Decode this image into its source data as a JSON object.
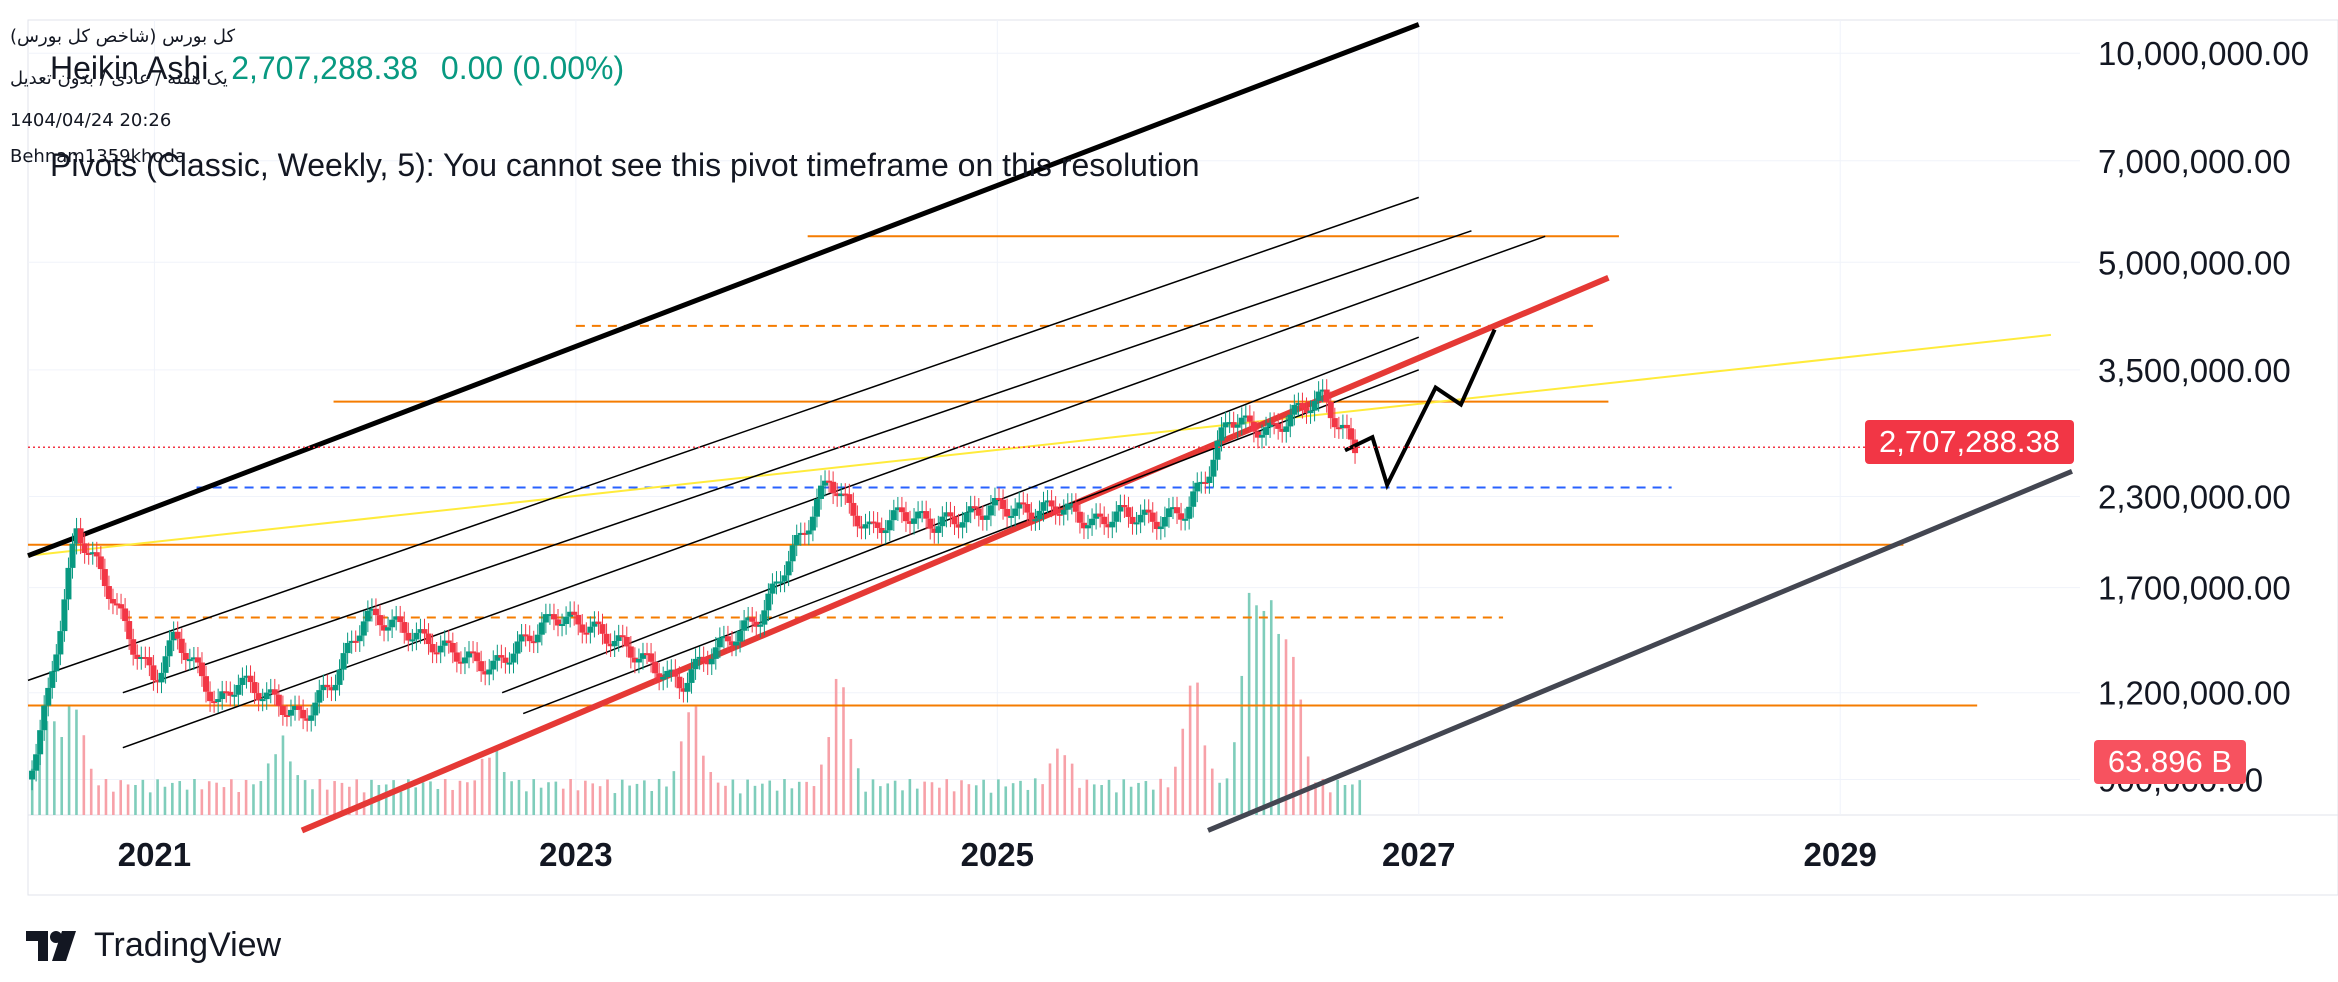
{
  "header": {
    "index_name": "کل بورس (شاخص کل بورس)",
    "settings": "یک هفته / عادی / بدون تعدیل",
    "datetime": "1404/04/24 20:26",
    "author": "Behnam1359khoda"
  },
  "legend": {
    "title": "Heikin Ashi",
    "price": "2,707,288.38",
    "change": "0.00 (0.00%)"
  },
  "pivots_note": "Pivots (Classic, Weekly, 5): You cannot see this pivot timeframe on this resolution",
  "badges": {
    "last_price": "2,707,288.38",
    "volume": "63.896 B"
  },
  "brand": {
    "name": "TradingView"
  },
  "colors": {
    "up": "#089981",
    "down": "#f23645",
    "price_badge": "#f23645",
    "orange_levels": "#f57c00",
    "yellow_trend": "#ffeb3b",
    "blue_level": "#2962ff",
    "red_support": "#e53935",
    "channel": "#000000",
    "lower_channel": "#434651"
  },
  "chart_data": {
    "type": "candlestick",
    "subtype": "heikin-ashi-weekly",
    "y_scale": "log",
    "ylim": [
      800000,
      10800000
    ],
    "xlim": [
      2020.4,
      2030.1
    ],
    "x_ticks": [
      {
        "value": 2021,
        "label": "2021"
      },
      {
        "value": 2023,
        "label": "2023"
      },
      {
        "value": 2025,
        "label": "2025"
      },
      {
        "value": 2027,
        "label": "2027"
      },
      {
        "value": 2029,
        "label": "2029"
      }
    ],
    "y_ticks": [
      {
        "value": 10000000,
        "label": "10,000,000.00"
      },
      {
        "value": 7000000,
        "label": "7,000,000.00"
      },
      {
        "value": 5000000,
        "label": "5,000,000.00"
      },
      {
        "value": 3500000,
        "label": "3,500,000.00"
      },
      {
        "value": 2300000,
        "label": "2,300,000.00"
      },
      {
        "value": 1700000,
        "label": "1,700,000.00"
      },
      {
        "value": 1200000,
        "label": "1,200,000.00"
      },
      {
        "value": 900000,
        "label": "900,000.00"
      }
    ],
    "last_price": 2707288.38,
    "price_path": [
      [
        2020.4,
        900000
      ],
      [
        2020.5,
        1200000
      ],
      [
        2020.58,
        1700000
      ],
      [
        2020.63,
        2050000
      ],
      [
        2020.7,
        1900000
      ],
      [
        2020.8,
        1650000
      ],
      [
        2020.9,
        1400000
      ],
      [
        2021.0,
        1250000
      ],
      [
        2021.1,
        1450000
      ],
      [
        2021.2,
        1300000
      ],
      [
        2021.3,
        1150000
      ],
      [
        2021.4,
        1250000
      ],
      [
        2021.55,
        1180000
      ],
      [
        2021.7,
        1100000
      ],
      [
        2021.85,
        1250000
      ],
      [
        2022.0,
        1550000
      ],
      [
        2022.15,
        1500000
      ],
      [
        2022.3,
        1420000
      ],
      [
        2022.45,
        1360000
      ],
      [
        2022.6,
        1300000
      ],
      [
        2022.75,
        1420000
      ],
      [
        2022.9,
        1550000
      ],
      [
        2023.05,
        1500000
      ],
      [
        2023.2,
        1420000
      ],
      [
        2023.35,
        1320000
      ],
      [
        2023.5,
        1230000
      ],
      [
        2023.6,
        1340000
      ],
      [
        2023.75,
        1450000
      ],
      [
        2023.88,
        1550000
      ],
      [
        2024.0,
        1850000
      ],
      [
        2024.1,
        2100000
      ],
      [
        2024.2,
        2450000
      ],
      [
        2024.3,
        2200000
      ],
      [
        2024.4,
        2050000
      ],
      [
        2024.55,
        2180000
      ],
      [
        2024.7,
        2100000
      ],
      [
        2024.85,
        2150000
      ],
      [
        2025.0,
        2230000
      ],
      [
        2025.15,
        2180000
      ],
      [
        2025.3,
        2230000
      ],
      [
        2025.45,
        2100000
      ],
      [
        2025.6,
        2180000
      ],
      [
        2025.75,
        2120000
      ],
      [
        2025.9,
        2200000
      ],
      [
        2026.0,
        2500000
      ],
      [
        2026.1,
        3000000
      ],
      [
        2026.2,
        2900000
      ],
      [
        2026.3,
        2850000
      ],
      [
        2026.45,
        3100000
      ],
      [
        2026.55,
        3200000
      ],
      [
        2026.62,
        2900000
      ],
      [
        2026.7,
        2707288
      ]
    ],
    "volume_spikes": [
      {
        "x": 2020.5,
        "v": 0.35
      },
      {
        "x": 2020.62,
        "v": 0.45
      },
      {
        "x": 2021.6,
        "v": 0.25
      },
      {
        "x": 2022.6,
        "v": 0.2
      },
      {
        "x": 2023.55,
        "v": 0.45
      },
      {
        "x": 2024.25,
        "v": 0.6
      },
      {
        "x": 2025.3,
        "v": 0.2
      },
      {
        "x": 2025.93,
        "v": 0.6
      },
      {
        "x": 2026.2,
        "v": 1.0
      },
      {
        "x": 2026.3,
        "v": 0.9
      },
      {
        "x": 2026.4,
        "v": 0.7
      }
    ]
  }
}
